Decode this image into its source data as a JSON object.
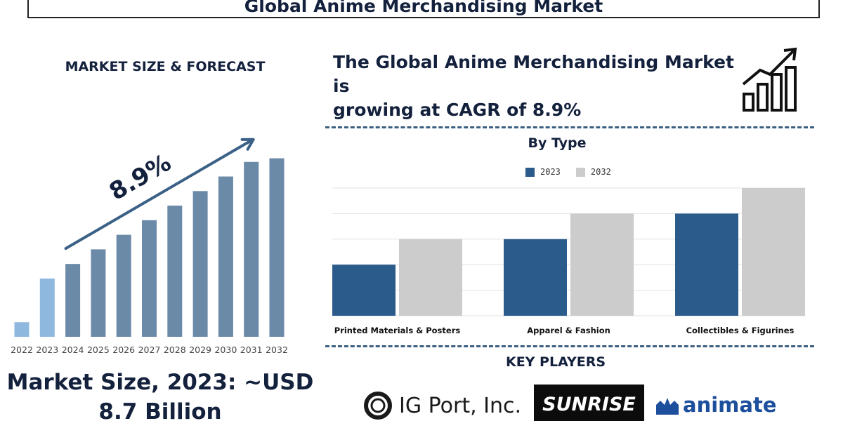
{
  "header": {
    "title": "Global Anime Merchandising Market"
  },
  "left_panel": {
    "heading": "MARKET SIZE & FORECAST",
    "market_size_line1": "Market Size, 2023: ~USD",
    "market_size_line2": "8.7 Billion"
  },
  "right_panel": {
    "cagr_line1": "The Global Anime Merchandising Market is",
    "cagr_line2": "growing at CAGR of 8.9%",
    "by_type_title": "By Type",
    "key_players_title": "KEY PLAYERS",
    "players": [
      "IG Port, Inc.",
      "SUNRISE",
      "animate"
    ]
  },
  "colors": {
    "navy": "#14213d",
    "forecast_bar": "#6b8aa8",
    "historic_bar": "#8fb8df",
    "series_2023": "#2a5b8a",
    "series_2032": "#cccccc",
    "arrow": "#3b6186"
  },
  "chart_data": [
    {
      "type": "bar",
      "title": "MARKET SIZE & FORECAST",
      "categories": [
        "2022",
        "2023",
        "2024",
        "2025",
        "2026",
        "2027",
        "2028",
        "2029",
        "2030",
        "2031",
        "2032"
      ],
      "values": [
        2,
        8,
        10,
        12,
        14,
        16,
        18,
        20,
        22,
        24,
        24.5
      ],
      "annotation": "8.9%",
      "ylim": [
        0,
        26
      ],
      "grid": false,
      "legend": "none"
    },
    {
      "type": "bar",
      "title": "By Type",
      "categories": [
        "Printed Materials & Posters",
        "Apparel & Fashion",
        "Collectibles & Figurines"
      ],
      "series": [
        {
          "name": "2023",
          "values": [
            2,
            3,
            4
          ]
        },
        {
          "name": "2032",
          "values": [
            3,
            4,
            5
          ]
        }
      ],
      "ylim": [
        0,
        5
      ],
      "grid": true,
      "legend": "top-center"
    }
  ]
}
